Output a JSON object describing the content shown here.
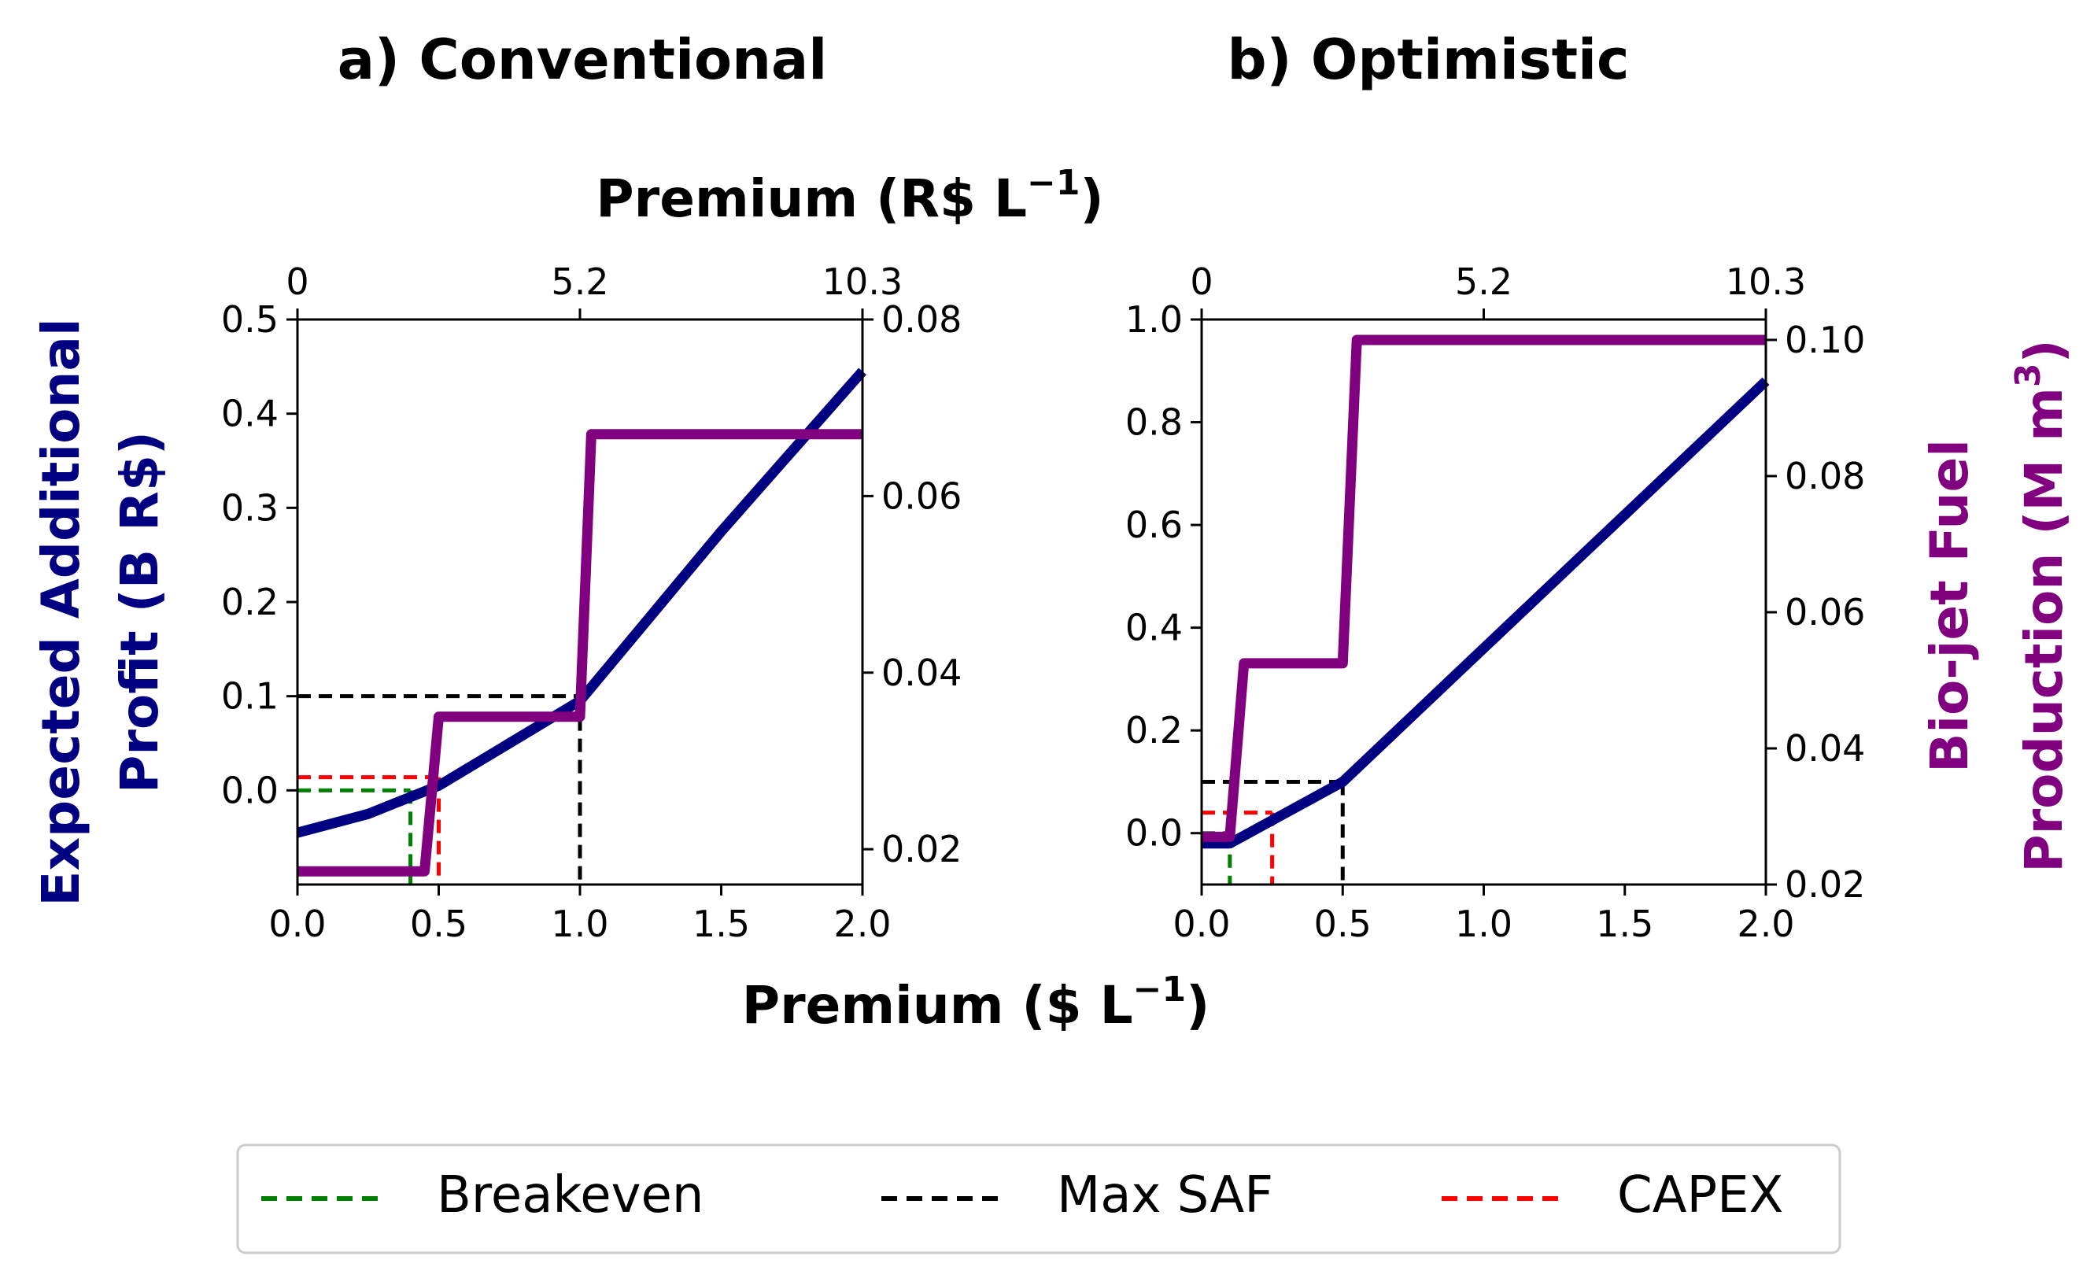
{
  "figure": {
    "top_xlabel_main": "Premium (R$ L",
    "top_xlabel_exp": "−1",
    "top_xlabel_end": ")",
    "bottom_xlabel_main": "Premium ($ L",
    "bottom_xlabel_exp": "−1",
    "bottom_xlabel_end": ")",
    "left_ylabel_line1": "Expected Additional",
    "left_ylabel_line2": "Profit (B R$)",
    "right_ylabel_line1": "Bio-jet Fuel",
    "right_ylabel_line2_main": "Production (M m",
    "right_ylabel_line2_exp": "3",
    "right_ylabel_line2_end": ")"
  },
  "legend": {
    "items": [
      {
        "label": "Breakeven",
        "color": "#008000"
      },
      {
        "label": "Max SAF",
        "color": "#000000"
      },
      {
        "label": "CAPEX",
        "color": "#ff0000"
      }
    ]
  },
  "colors": {
    "profit": "#000080",
    "production": "#800080",
    "left_label": "#000080",
    "right_label": "#800080"
  },
  "chart_data": [
    {
      "type": "line",
      "title": "a) Conventional",
      "xlabel": "Premium ($ L−1)",
      "x2label": "Premium (R$ L−1)",
      "ylabel": "Expected Additional Profit (B R$)",
      "y2label": "Bio-jet Fuel Production (M m3)",
      "xlim": [
        0,
        2.0
      ],
      "ylim": [
        -0.1,
        0.5
      ],
      "y2lim": [
        0.016,
        0.08
      ],
      "xticks": [
        "0.0",
        "0.5",
        "1.0",
        "1.5",
        "2.0"
      ],
      "x2ticks": [
        {
          "label": "0",
          "at": 0
        },
        {
          "label": "5.2",
          "at": 1.0
        },
        {
          "label": "10.3",
          "at": 2.0
        }
      ],
      "yticks": [
        "0.0",
        "0.1",
        "0.2",
        "0.3",
        "0.4",
        "0.5"
      ],
      "y2ticks": [
        "0.02",
        "0.04",
        "0.06",
        "0.08"
      ],
      "series": [
        {
          "axis": "left",
          "x": [
            0.0,
            0.25,
            0.5,
            0.75,
            1.0,
            1.25,
            1.5,
            1.75,
            2.0
          ],
          "y": [
            -0.045,
            -0.025,
            0.005,
            0.05,
            0.095,
            0.185,
            0.275,
            0.36,
            0.445
          ]
        },
        {
          "axis": "right",
          "x": [
            0.0,
            0.45,
            0.5,
            1.0,
            1.04,
            2.0
          ],
          "y": [
            0.0175,
            0.0175,
            0.035,
            0.035,
            0.067,
            0.067
          ]
        }
      ],
      "markers": [
        {
          "legend": "Breakeven",
          "x": 0.4,
          "y": 0.0
        },
        {
          "legend": "Max SAF",
          "x": 1.0,
          "y": 0.1
        },
        {
          "legend": "CAPEX",
          "x": 0.5,
          "y": 0.014
        }
      ]
    },
    {
      "type": "line",
      "title": "b) Optimistic",
      "xlabel": "Premium ($ L−1)",
      "x2label": "Premium (R$ L−1)",
      "ylabel": "Expected Additional Profit (B R$)",
      "y2label": "Bio-jet Fuel Production (M m3)",
      "xlim": [
        0,
        2.0
      ],
      "ylim": [
        -0.1,
        1.0
      ],
      "y2lim": [
        0.02,
        0.103
      ],
      "xticks": [
        "0.0",
        "0.5",
        "1.0",
        "1.5",
        "2.0"
      ],
      "x2ticks": [
        {
          "label": "0",
          "at": 0
        },
        {
          "label": "5.2",
          "at": 1.0
        },
        {
          "label": "10.3",
          "at": 2.0
        }
      ],
      "yticks": [
        "0.0",
        "0.2",
        "0.4",
        "0.6",
        "0.8",
        "1.0"
      ],
      "y2ticks": [
        "0.02",
        "0.04",
        "0.06",
        "0.08",
        "0.10"
      ],
      "series": [
        {
          "axis": "left",
          "x": [
            0.0,
            0.1,
            0.5,
            1.0,
            1.5,
            2.0
          ],
          "y": [
            -0.02,
            -0.02,
            0.1,
            0.36,
            0.62,
            0.88
          ]
        },
        {
          "axis": "right",
          "x": [
            0.0,
            0.1,
            0.15,
            0.5,
            0.55,
            2.0
          ],
          "y": [
            0.027,
            0.027,
            0.0525,
            0.0525,
            0.1,
            0.1
          ]
        }
      ],
      "markers": [
        {
          "legend": "Breakeven",
          "x": 0.1,
          "y": 0.0
        },
        {
          "legend": "Max SAF",
          "x": 0.5,
          "y": 0.1
        },
        {
          "legend": "CAPEX",
          "x": 0.25,
          "y": 0.04
        }
      ]
    }
  ]
}
